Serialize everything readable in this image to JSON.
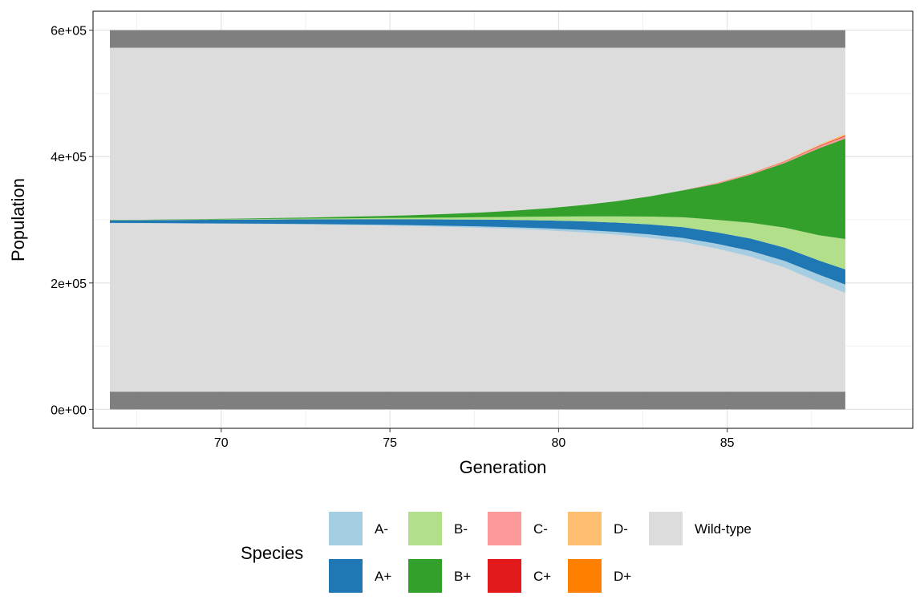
{
  "chart_data": {
    "type": "area",
    "subtype": "centered-stacked-area (fish plot)",
    "xlabel": "Generation",
    "ylabel": "Population",
    "xlim": [
      66.2,
      90.5
    ],
    "ylim": [
      -30000,
      630000
    ],
    "x_ticks": [
      70,
      75,
      80,
      85
    ],
    "y_ticks": [
      0,
      200000,
      400000,
      600000
    ],
    "y_tick_labels": [
      "0e+00",
      "2e+05",
      "4e+05",
      "6e+05"
    ],
    "grid": true,
    "legend_title": "Species",
    "legend_position": "bottom",
    "x": [
      66.7,
      67.7,
      68.7,
      69.7,
      70.7,
      71.7,
      72.7,
      73.7,
      74.7,
      75.7,
      76.7,
      77.7,
      78.7,
      79.7,
      80.7,
      81.7,
      82.7,
      83.7,
      84.7,
      85.7,
      86.7,
      87.7,
      88.5
    ],
    "series": [
      {
        "name": "A-",
        "color": "#a6cee3",
        "center_offset": 1,
        "bottom": [
          0,
          0,
          0,
          0,
          0,
          0,
          0,
          0,
          0,
          0,
          0,
          0,
          0,
          0,
          0,
          0,
          0,
          0,
          0,
          0,
          0,
          0,
          0
        ],
        "top": [
          300,
          350,
          420,
          500,
          600,
          720,
          860,
          1030,
          1240,
          1490,
          1790,
          2150,
          2580,
          3100,
          3720,
          4460,
          5350,
          6400,
          7600,
          9000,
          10500,
          12000,
          13200
        ]
      },
      {
        "name": "A+",
        "color": "#1f78b4",
        "center_offset": 0,
        "bottom": [
          2000,
          2200,
          2500,
          2800,
          3100,
          3400,
          3700,
          4000,
          4300,
          4600,
          5000,
          5400,
          5800,
          6300,
          6800,
          7300,
          7900,
          8500,
          9100,
          9800,
          10500,
          11200,
          12000
        ],
        "top": [
          2000,
          2200,
          2500,
          2800,
          3100,
          3400,
          3700,
          4000,
          4300,
          4600,
          5000,
          5400,
          5800,
          6300,
          6800,
          7300,
          7900,
          8500,
          9100,
          9800,
          10500,
          11200,
          12000
        ]
      },
      {
        "name": "B-",
        "color": "#b2df8a",
        "center_offset": 0,
        "bottom": [
          150,
          190,
          240,
          300,
          380,
          480,
          600,
          760,
          960,
          1210,
          1530,
          1930,
          2440,
          3080,
          3890,
          4920,
          6210,
          7850,
          9900,
          12500,
          15800,
          19900,
          24100
        ],
        "top": [
          150,
          190,
          240,
          300,
          380,
          480,
          600,
          760,
          960,
          1210,
          1530,
          1930,
          2440,
          3080,
          3890,
          4920,
          6210,
          7850,
          9900,
          12500,
          15800,
          19900,
          24100
        ]
      },
      {
        "name": "B+",
        "color": "#33a02c",
        "center_offset": 0,
        "bottom": [
          150,
          200,
          270,
          360,
          480,
          640,
          860,
          1150,
          1540,
          2060,
          2760,
          3700,
          4950,
          6630,
          8880,
          11890,
          15920,
          21310,
          28520,
          38180,
          51100,
          68400,
          79500
        ],
        "top": [
          150,
          200,
          270,
          360,
          480,
          640,
          860,
          1150,
          1540,
          2060,
          2760,
          3700,
          4950,
          6630,
          8880,
          11890,
          15920,
          21310,
          28520,
          38180,
          51100,
          68400,
          79500
        ]
      },
      {
        "name": "C-",
        "color": "#fb9a99",
        "center_offset": 0,
        "bottom": [
          0,
          0,
          0,
          0,
          0,
          0,
          0,
          0,
          0,
          0,
          0,
          0,
          0,
          0,
          0,
          0,
          0,
          0,
          1300,
          1720,
          2280,
          3010,
          3500
        ],
        "top": [
          0,
          0,
          0,
          0,
          0,
          0,
          0,
          0,
          0,
          0,
          0,
          0,
          0,
          0,
          0,
          0,
          0,
          0,
          0,
          0,
          0,
          0,
          0
        ]
      },
      {
        "name": "C+",
        "color": "#e31a1c",
        "center_offset": 0,
        "bottom": [
          0,
          0,
          0,
          0,
          0,
          0,
          0,
          0,
          0,
          0,
          0,
          0,
          0,
          0,
          0,
          0,
          0,
          0,
          150,
          260,
          450,
          780,
          1200
        ],
        "top": [
          0,
          0,
          0,
          0,
          0,
          0,
          0,
          0,
          0,
          0,
          0,
          0,
          0,
          0,
          0,
          0,
          0,
          0,
          0,
          0,
          0,
          0,
          0
        ]
      },
      {
        "name": "D-",
        "color": "#fdbf6f",
        "center_offset": 0,
        "bottom": [
          0,
          0,
          0,
          0,
          0,
          0,
          0,
          0,
          0,
          0,
          0,
          0,
          0,
          0,
          0,
          0,
          0,
          0,
          250,
          470,
          880,
          1650,
          2500
        ],
        "top": [
          0,
          0,
          0,
          0,
          0,
          0,
          0,
          0,
          0,
          0,
          0,
          0,
          0,
          0,
          0,
          0,
          0,
          0,
          0,
          0,
          0,
          0,
          0
        ]
      },
      {
        "name": "D+",
        "color": "#ff7f00",
        "center_offset": 0,
        "bottom": [
          0,
          0,
          0,
          0,
          0,
          0,
          0,
          0,
          0,
          0,
          0,
          0,
          0,
          0,
          0,
          0,
          0,
          0,
          0,
          0,
          0,
          0,
          0
        ],
        "top": [
          0,
          0,
          0,
          0,
          0,
          0,
          0,
          0,
          0,
          0,
          0,
          0,
          0,
          0,
          0,
          0,
          0,
          0,
          0,
          0,
          0,
          0,
          0
        ]
      },
      {
        "name": "Wild-type",
        "color": "#dcdcdc",
        "bottom_edge": 28000,
        "top_edge": 572000
      },
      {
        "name": "frame",
        "color": "#7f7f7f",
        "bands": [
          [
            0,
            28000
          ],
          [
            572000,
            600000
          ]
        ]
      }
    ],
    "center_line": [
      297000,
      297100,
      297200,
      297300,
      297400,
      297500,
      297600,
      297700,
      297800,
      297900,
      298000,
      298300,
      298700,
      299200,
      299800,
      300600,
      301500,
      302500,
      303500,
      304500,
      305500,
      306500,
      307000
    ],
    "legend": [
      {
        "label": "A-",
        "color": "#a6cee3"
      },
      {
        "label": "A+",
        "color": "#1f78b4"
      },
      {
        "label": "B-",
        "color": "#b2df8a"
      },
      {
        "label": "B+",
        "color": "#33a02c"
      },
      {
        "label": "C-",
        "color": "#fb9a99"
      },
      {
        "label": "C+",
        "color": "#e31a1c"
      },
      {
        "label": "D-",
        "color": "#fdbf6f"
      },
      {
        "label": "D+",
        "color": "#ff7f00"
      },
      {
        "label": "Wild-type",
        "color": "#dcdcdc"
      }
    ]
  }
}
